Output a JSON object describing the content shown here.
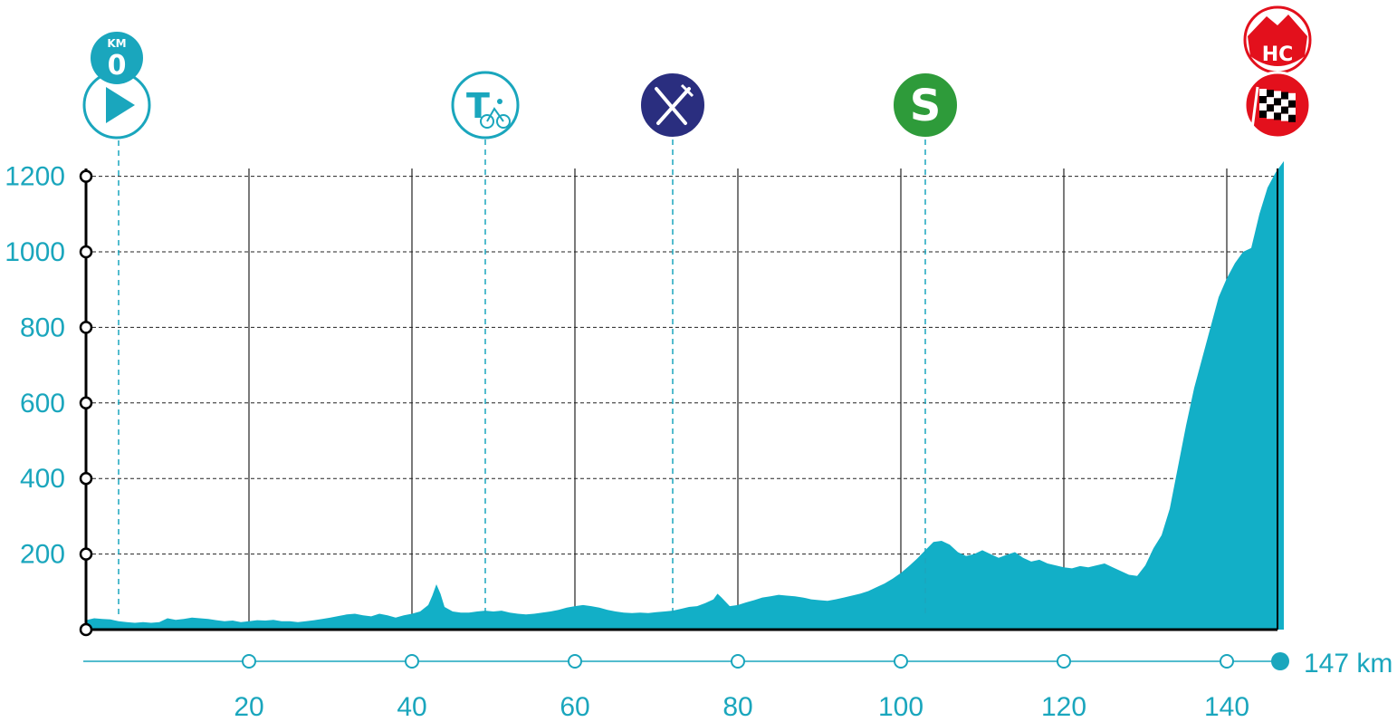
{
  "chart_data": {
    "type": "area",
    "title": "",
    "xlabel": "",
    "ylabel": "",
    "xlim": [
      0,
      147
    ],
    "ylim": [
      0,
      1200
    ],
    "grid": true,
    "y_ticks": [
      200,
      400,
      600,
      800,
      1000,
      1200
    ],
    "y_tick_labels": [
      "200",
      "400",
      "600",
      "800",
      "1000",
      "1200"
    ],
    "x_ticks": [
      20,
      40,
      60,
      80,
      100,
      120,
      140
    ],
    "x_tick_labels": [
      "20",
      "40",
      "60",
      "80",
      "100",
      "120",
      "140"
    ],
    "distance_label": "147 km",
    "series": [
      {
        "values": [
          [
            0,
            25
          ],
          [
            1,
            30
          ],
          [
            2,
            28
          ],
          [
            3,
            27
          ],
          [
            4,
            22
          ],
          [
            5,
            20
          ],
          [
            6,
            18
          ],
          [
            7,
            20
          ],
          [
            8,
            18
          ],
          [
            9,
            20
          ],
          [
            10,
            30
          ],
          [
            11,
            26
          ],
          [
            12,
            28
          ],
          [
            13,
            32
          ],
          [
            14,
            30
          ],
          [
            15,
            28
          ],
          [
            16,
            25
          ],
          [
            17,
            22
          ],
          [
            18,
            24
          ],
          [
            19,
            20
          ],
          [
            20,
            22
          ],
          [
            21,
            25
          ],
          [
            22,
            24
          ],
          [
            23,
            26
          ],
          [
            24,
            22
          ],
          [
            25,
            22
          ],
          [
            26,
            20
          ],
          [
            27,
            22
          ],
          [
            28,
            25
          ],
          [
            29,
            28
          ],
          [
            30,
            32
          ],
          [
            31,
            36
          ],
          [
            32,
            40
          ],
          [
            33,
            42
          ],
          [
            34,
            38
          ],
          [
            35,
            35
          ],
          [
            36,
            42
          ],
          [
            37,
            38
          ],
          [
            38,
            32
          ],
          [
            39,
            38
          ],
          [
            40,
            42
          ],
          [
            41,
            48
          ],
          [
            42,
            65
          ],
          [
            42.5,
            90
          ],
          [
            43,
            120
          ],
          [
            43.5,
            95
          ],
          [
            44,
            60
          ],
          [
            45,
            48
          ],
          [
            46,
            45
          ],
          [
            47,
            45
          ],
          [
            48,
            48
          ],
          [
            49,
            50
          ],
          [
            50,
            48
          ],
          [
            51,
            50
          ],
          [
            52,
            45
          ],
          [
            53,
            42
          ],
          [
            54,
            40
          ],
          [
            55,
            42
          ],
          [
            56,
            45
          ],
          [
            57,
            48
          ],
          [
            58,
            52
          ],
          [
            59,
            58
          ],
          [
            60,
            62
          ],
          [
            61,
            65
          ],
          [
            62,
            62
          ],
          [
            63,
            58
          ],
          [
            64,
            52
          ],
          [
            65,
            48
          ],
          [
            66,
            45
          ],
          [
            67,
            44
          ],
          [
            68,
            45
          ],
          [
            69,
            44
          ],
          [
            70,
            46
          ],
          [
            71,
            48
          ],
          [
            72,
            50
          ],
          [
            73,
            55
          ],
          [
            74,
            60
          ],
          [
            75,
            62
          ],
          [
            76,
            70
          ],
          [
            77,
            80
          ],
          [
            77.5,
            95
          ],
          [
            78,
            85
          ],
          [
            79,
            62
          ],
          [
            80,
            65
          ],
          [
            81,
            72
          ],
          [
            82,
            78
          ],
          [
            83,
            85
          ],
          [
            84,
            88
          ],
          [
            85,
            92
          ],
          [
            86,
            90
          ],
          [
            87,
            88
          ],
          [
            88,
            85
          ],
          [
            89,
            80
          ],
          [
            90,
            78
          ],
          [
            91,
            76
          ],
          [
            92,
            80
          ],
          [
            93,
            85
          ],
          [
            94,
            90
          ],
          [
            95,
            95
          ],
          [
            96,
            102
          ],
          [
            97,
            112
          ],
          [
            98,
            122
          ],
          [
            99,
            135
          ],
          [
            100,
            150
          ],
          [
            101,
            168
          ],
          [
            102,
            188
          ],
          [
            103,
            210
          ],
          [
            104,
            232
          ],
          [
            105,
            235
          ],
          [
            106,
            225
          ],
          [
            107,
            205
          ],
          [
            108,
            195
          ],
          [
            109,
            200
          ],
          [
            110,
            210
          ],
          [
            111,
            200
          ],
          [
            112,
            190
          ],
          [
            113,
            198
          ],
          [
            114,
            205
          ],
          [
            115,
            190
          ],
          [
            116,
            180
          ],
          [
            117,
            185
          ],
          [
            118,
            175
          ],
          [
            119,
            170
          ],
          [
            120,
            165
          ],
          [
            121,
            162
          ],
          [
            122,
            168
          ],
          [
            123,
            165
          ],
          [
            124,
            170
          ],
          [
            125,
            175
          ],
          [
            126,
            165
          ],
          [
            127,
            155
          ],
          [
            128,
            145
          ],
          [
            129,
            142
          ],
          [
            130,
            170
          ],
          [
            131,
            215
          ],
          [
            132,
            250
          ],
          [
            133,
            320
          ],
          [
            134,
            430
          ],
          [
            135,
            540
          ],
          [
            136,
            640
          ],
          [
            137,
            720
          ],
          [
            138,
            800
          ],
          [
            139,
            880
          ],
          [
            140,
            930
          ],
          [
            141,
            970
          ],
          [
            142,
            1000
          ],
          [
            143,
            1010
          ],
          [
            144,
            1100
          ],
          [
            145,
            1170
          ],
          [
            146,
            1210
          ],
          [
            147,
            1240
          ]
        ]
      }
    ],
    "markers": [
      {
        "name": "start",
        "km": 4,
        "icon": "play-icon",
        "badge_top": "KM",
        "badge_value": "0",
        "color": "#1aa6bd"
      },
      {
        "name": "time-trial-checkpoint",
        "km": 49,
        "icon": "t-cyclist-icon",
        "letter": "T",
        "color": "#1aa6bd"
      },
      {
        "name": "feed-zone",
        "km": 72,
        "icon": "fork-knife-icon",
        "color": "#2a2e7f"
      },
      {
        "name": "intermediate-sprint",
        "km": 103,
        "icon": "sprint-icon",
        "letter": "S",
        "color": "#2e9b3a"
      },
      {
        "name": "finish-summit",
        "km": 147,
        "icon": "checkered-flag-icon",
        "climb_category": "HC",
        "color": "#e3101c"
      }
    ],
    "colors": {
      "profile_fill": "#12afc7",
      "accent": "#1aa6bd",
      "grid": "#222222",
      "axis": "#000000"
    }
  }
}
